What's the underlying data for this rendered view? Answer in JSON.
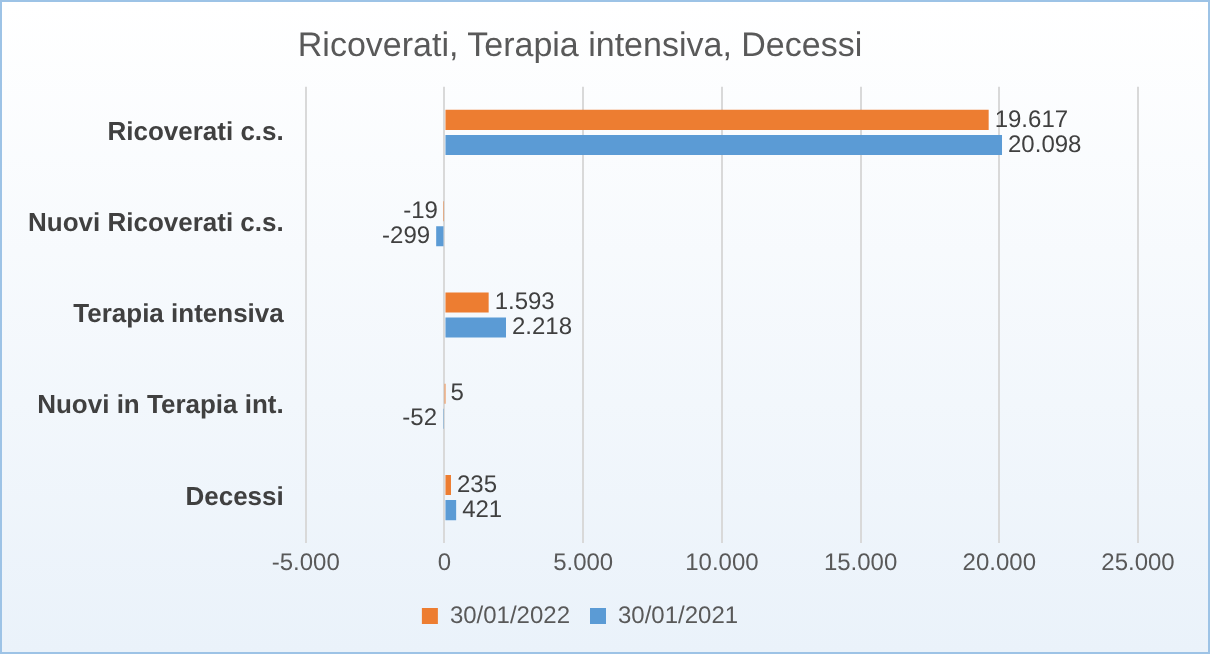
{
  "chart_data": {
    "type": "bar",
    "orientation": "horizontal",
    "title": "Ricoverati, Terapia intensiva, Decessi",
    "categories": [
      "Ricoverati c.s.",
      "Nuovi Ricoverati c.s.",
      "Terapia intensiva",
      "Nuovi in Terapia int.",
      "Decessi"
    ],
    "series": [
      {
        "name": "30/01/2022",
        "color": "#ed7d31",
        "values": [
          19617,
          -19,
          1593,
          5,
          235
        ],
        "value_labels": [
          "19.617",
          "-19",
          "1.593",
          "5",
          "235"
        ]
      },
      {
        "name": "30/01/2021",
        "color": "#5b9bd5",
        "values": [
          20098,
          -299,
          2218,
          -52,
          421
        ],
        "value_labels": [
          "20.098",
          "-299",
          "2.218",
          "-52",
          "421"
        ]
      }
    ],
    "xlim": [
      -5000,
      25000
    ],
    "xticks": [
      {
        "value": -5000,
        "label": "-5.000"
      },
      {
        "value": 0,
        "label": "0"
      },
      {
        "value": 5000,
        "label": "5.000"
      },
      {
        "value": 10000,
        "label": "10.000"
      },
      {
        "value": 15000,
        "label": "15.000"
      },
      {
        "value": 20000,
        "label": "20.000"
      },
      {
        "value": 25000,
        "label": "25.000"
      }
    ],
    "grid": "x",
    "legend": "bottom"
  }
}
